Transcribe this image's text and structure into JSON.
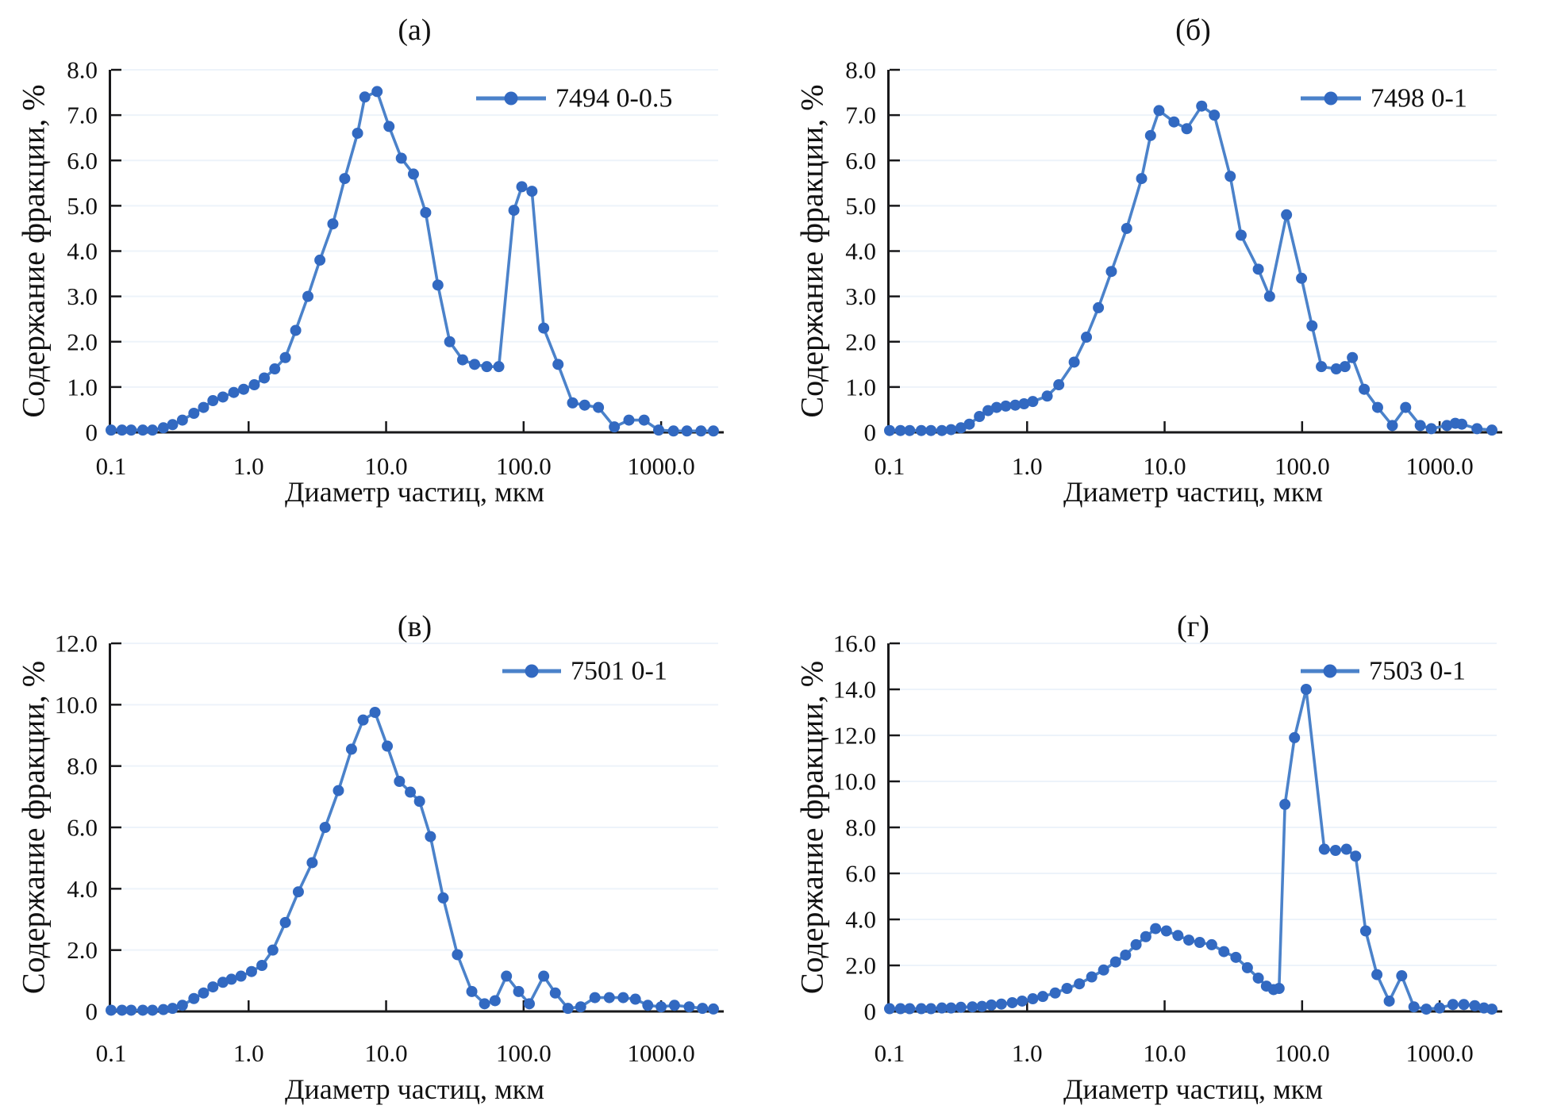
{
  "figure": {
    "background_color": "#ffffff",
    "line_color": "#4b82ca",
    "marker_color": "#3269c1",
    "axis_color": "#18181a",
    "grid_color": "#edf3fa",
    "text_color": "#111111",
    "x_axis_label": "Диаметр частиц, мкм",
    "y_axis_label": "Содержание фракции, %",
    "x_tick_values": [
      0.1,
      1,
      10,
      100,
      1000
    ],
    "x_tick_labels": [
      "0.1",
      "1.0",
      "10.0",
      "100.0",
      "1000.0"
    ]
  },
  "chart_data": [
    {
      "type": "line",
      "panel_label": "(а)",
      "legend": "7494 0-0.5",
      "xlabel": "Диаметр частиц, мкм",
      "ylabel": "Содержание фракции, %",
      "xscale": "log",
      "xlim": [
        0.1,
        2600
      ],
      "ylim": [
        0,
        8
      ],
      "grid": "faint-horizontal",
      "legend_position": "top-right-inside",
      "y_tick_values": [
        0,
        1,
        2,
        3,
        4,
        5,
        6,
        7,
        8
      ],
      "y_tick_labels": [
        "0",
        "1.0",
        "2.0",
        "3.0",
        "4.0",
        "5.0",
        "6.0",
        "7.0",
        "8.0"
      ],
      "legend_layout": {
        "x1": 600,
        "x2": 688,
        "text_x": 700
      },
      "points": [
        [
          0.1,
          0.05
        ],
        [
          0.12,
          0.05
        ],
        [
          0.14,
          0.05
        ],
        [
          0.17,
          0.05
        ],
        [
          0.2,
          0.05
        ],
        [
          0.24,
          0.1
        ],
        [
          0.28,
          0.17
        ],
        [
          0.33,
          0.27
        ],
        [
          0.4,
          0.42
        ],
        [
          0.47,
          0.55
        ],
        [
          0.55,
          0.7
        ],
        [
          0.65,
          0.78
        ],
        [
          0.78,
          0.88
        ],
        [
          0.92,
          0.95
        ],
        [
          1.1,
          1.05
        ],
        [
          1.3,
          1.2
        ],
        [
          1.55,
          1.4
        ],
        [
          1.85,
          1.65
        ],
        [
          2.2,
          2.25
        ],
        [
          2.7,
          3.0
        ],
        [
          3.3,
          3.8
        ],
        [
          4.1,
          4.6
        ],
        [
          5.0,
          5.6
        ],
        [
          6.2,
          6.6
        ],
        [
          7.0,
          7.4
        ],
        [
          8.6,
          7.52
        ],
        [
          10.5,
          6.75
        ],
        [
          12.9,
          6.05
        ],
        [
          15.8,
          5.7
        ],
        [
          19.4,
          4.85
        ],
        [
          23.8,
          3.25
        ],
        [
          29,
          2.0
        ],
        [
          36,
          1.6
        ],
        [
          44,
          1.5
        ],
        [
          54,
          1.45
        ],
        [
          66,
          1.45
        ],
        [
          85,
          4.9
        ],
        [
          97,
          5.42
        ],
        [
          115,
          5.32
        ],
        [
          140,
          2.3
        ],
        [
          178,
          1.5
        ],
        [
          227,
          0.65
        ],
        [
          278,
          0.6
        ],
        [
          350,
          0.55
        ],
        [
          457,
          0.12
        ],
        [
          583,
          0.27
        ],
        [
          752,
          0.27
        ],
        [
          960,
          0.05
        ],
        [
          1230,
          0.03
        ],
        [
          1540,
          0.03
        ],
        [
          1950,
          0.03
        ],
        [
          2400,
          0.03
        ]
      ]
    },
    {
      "type": "line",
      "panel_label": "(б)",
      "legend": "7498 0-1",
      "xlabel": "Диаметр частиц, мкм",
      "ylabel": "Содержание фракции, %",
      "xscale": "log",
      "xlim": [
        0.1,
        2600
      ],
      "ylim": [
        0,
        8
      ],
      "grid": "faint-horizontal",
      "legend_position": "top-right-inside",
      "y_tick_values": [
        0,
        1,
        2,
        3,
        4,
        5,
        6,
        7,
        8
      ],
      "y_tick_labels": [
        "0",
        "1.0",
        "2.0",
        "3.0",
        "4.0",
        "5.0",
        "6.0",
        "7.0",
        "8.0"
      ],
      "legend_layout": {
        "x1": 658,
        "x2": 734,
        "text_x": 746
      },
      "points": [
        [
          0.1,
          0.04
        ],
        [
          0.12,
          0.04
        ],
        [
          0.14,
          0.04
        ],
        [
          0.17,
          0.04
        ],
        [
          0.2,
          0.04
        ],
        [
          0.24,
          0.04
        ],
        [
          0.28,
          0.06
        ],
        [
          0.33,
          0.1
        ],
        [
          0.38,
          0.18
        ],
        [
          0.45,
          0.35
        ],
        [
          0.52,
          0.48
        ],
        [
          0.6,
          0.55
        ],
        [
          0.7,
          0.58
        ],
        [
          0.82,
          0.6
        ],
        [
          0.95,
          0.63
        ],
        [
          1.1,
          0.68
        ],
        [
          1.4,
          0.8
        ],
        [
          1.7,
          1.05
        ],
        [
          2.2,
          1.55
        ],
        [
          2.7,
          2.1
        ],
        [
          3.3,
          2.75
        ],
        [
          4.1,
          3.55
        ],
        [
          5.3,
          4.5
        ],
        [
          6.8,
          5.6
        ],
        [
          7.9,
          6.55
        ],
        [
          9.1,
          7.1
        ],
        [
          11.7,
          6.85
        ],
        [
          14.5,
          6.7
        ],
        [
          18.6,
          7.2
        ],
        [
          23,
          7.0
        ],
        [
          30,
          5.65
        ],
        [
          36,
          4.35
        ],
        [
          48,
          3.6
        ],
        [
          58,
          3.0
        ],
        [
          77,
          4.8
        ],
        [
          99,
          3.4
        ],
        [
          118,
          2.35
        ],
        [
          138,
          1.45
        ],
        [
          177,
          1.4
        ],
        [
          205,
          1.45
        ],
        [
          232,
          1.65
        ],
        [
          283,
          0.95
        ],
        [
          354,
          0.55
        ],
        [
          453,
          0.15
        ],
        [
          566,
          0.55
        ],
        [
          723,
          0.15
        ],
        [
          870,
          0.08
        ],
        [
          1130,
          0.15
        ],
        [
          1300,
          0.2
        ],
        [
          1450,
          0.18
        ],
        [
          1870,
          0.08
        ],
        [
          2400,
          0.05
        ]
      ]
    },
    {
      "type": "line",
      "panel_label": "(в)",
      "legend": "7501 0-1",
      "xlabel": "Диаметр частиц, мкм",
      "ylabel": "Содержание фракции, %",
      "xscale": "log",
      "xlim": [
        0.1,
        2600
      ],
      "ylim": [
        0,
        12
      ],
      "grid": "faint-horizontal",
      "legend_position": "top-right-inside",
      "y_tick_values": [
        0,
        2,
        4,
        6,
        8,
        10,
        12
      ],
      "y_tick_labels": [
        "0",
        "2.0",
        "4.0",
        "6.0",
        "8.0",
        "10.0",
        "12.0"
      ],
      "legend_layout": {
        "x1": 633,
        "x2": 707,
        "text_x": 719
      },
      "points": [
        [
          0.1,
          0.04
        ],
        [
          0.12,
          0.04
        ],
        [
          0.14,
          0.04
        ],
        [
          0.17,
          0.04
        ],
        [
          0.2,
          0.04
        ],
        [
          0.24,
          0.06
        ],
        [
          0.28,
          0.1
        ],
        [
          0.33,
          0.2
        ],
        [
          0.4,
          0.42
        ],
        [
          0.47,
          0.6
        ],
        [
          0.55,
          0.8
        ],
        [
          0.65,
          0.95
        ],
        [
          0.75,
          1.05
        ],
        [
          0.88,
          1.15
        ],
        [
          1.05,
          1.3
        ],
        [
          1.25,
          1.5
        ],
        [
          1.5,
          2.0
        ],
        [
          1.85,
          2.9
        ],
        [
          2.3,
          3.9
        ],
        [
          2.9,
          4.85
        ],
        [
          3.6,
          6.0
        ],
        [
          4.5,
          7.2
        ],
        [
          5.6,
          8.55
        ],
        [
          6.8,
          9.5
        ],
        [
          8.3,
          9.75
        ],
        [
          10.2,
          8.65
        ],
        [
          12.5,
          7.5
        ],
        [
          15,
          7.15
        ],
        [
          17.5,
          6.85
        ],
        [
          21,
          5.7
        ],
        [
          26,
          3.7
        ],
        [
          33,
          1.85
        ],
        [
          42,
          0.65
        ],
        [
          52,
          0.25
        ],
        [
          62,
          0.35
        ],
        [
          75,
          1.15
        ],
        [
          92,
          0.65
        ],
        [
          110,
          0.25
        ],
        [
          140,
          1.15
        ],
        [
          170,
          0.6
        ],
        [
          210,
          0.1
        ],
        [
          260,
          0.15
        ],
        [
          330,
          0.45
        ],
        [
          420,
          0.45
        ],
        [
          530,
          0.45
        ],
        [
          650,
          0.4
        ],
        [
          800,
          0.2
        ],
        [
          1000,
          0.15
        ],
        [
          1250,
          0.2
        ],
        [
          1600,
          0.15
        ],
        [
          2000,
          0.1
        ],
        [
          2400,
          0.08
        ]
      ]
    },
    {
      "type": "line",
      "panel_label": "(г)",
      "legend": "7503 0-1",
      "xlabel": "Диаметр частиц, мкм",
      "ylabel": "Содержание фракции, %",
      "xscale": "log",
      "xlim": [
        0.1,
        2600
      ],
      "ylim": [
        0,
        16
      ],
      "grid": "faint-horizontal",
      "legend_position": "top-right-inside",
      "y_tick_values": [
        0,
        2,
        4,
        6,
        8,
        10,
        12,
        14,
        16
      ],
      "y_tick_labels": [
        "0",
        "2.0",
        "4.0",
        "6.0",
        "8.0",
        "10.0",
        "12.0",
        "14.0",
        "16.0"
      ],
      "legend_layout": {
        "x1": 658,
        "x2": 732,
        "text_x": 744
      },
      "points": [
        [
          0.1,
          0.12
        ],
        [
          0.12,
          0.12
        ],
        [
          0.14,
          0.12
        ],
        [
          0.17,
          0.12
        ],
        [
          0.2,
          0.12
        ],
        [
          0.24,
          0.15
        ],
        [
          0.28,
          0.15
        ],
        [
          0.33,
          0.18
        ],
        [
          0.4,
          0.2
        ],
        [
          0.47,
          0.22
        ],
        [
          0.55,
          0.28
        ],
        [
          0.65,
          0.32
        ],
        [
          0.78,
          0.38
        ],
        [
          0.92,
          0.45
        ],
        [
          1.1,
          0.55
        ],
        [
          1.3,
          0.65
        ],
        [
          1.6,
          0.8
        ],
        [
          1.95,
          1.0
        ],
        [
          2.4,
          1.2
        ],
        [
          2.95,
          1.5
        ],
        [
          3.6,
          1.8
        ],
        [
          4.4,
          2.15
        ],
        [
          5.2,
          2.45
        ],
        [
          6.2,
          2.9
        ],
        [
          7.3,
          3.25
        ],
        [
          8.6,
          3.6
        ],
        [
          10.3,
          3.5
        ],
        [
          12.5,
          3.3
        ],
        [
          15,
          3.1
        ],
        [
          18,
          3.0
        ],
        [
          22,
          2.9
        ],
        [
          27,
          2.6
        ],
        [
          33,
          2.35
        ],
        [
          40,
          1.9
        ],
        [
          48,
          1.45
        ],
        [
          55,
          1.1
        ],
        [
          62,
          0.95
        ],
        [
          68,
          1.0
        ],
        [
          75,
          9.0
        ],
        [
          88,
          11.9
        ],
        [
          107,
          14.0
        ],
        [
          145,
          7.05
        ],
        [
          175,
          7.0
        ],
        [
          210,
          7.05
        ],
        [
          245,
          6.75
        ],
        [
          290,
          3.5
        ],
        [
          350,
          1.6
        ],
        [
          430,
          0.45
        ],
        [
          530,
          1.55
        ],
        [
          650,
          0.2
        ],
        [
          800,
          0.1
        ],
        [
          1000,
          0.15
        ],
        [
          1250,
          0.3
        ],
        [
          1500,
          0.3
        ],
        [
          1800,
          0.25
        ],
        [
          2100,
          0.15
        ],
        [
          2400,
          0.1
        ]
      ]
    }
  ]
}
